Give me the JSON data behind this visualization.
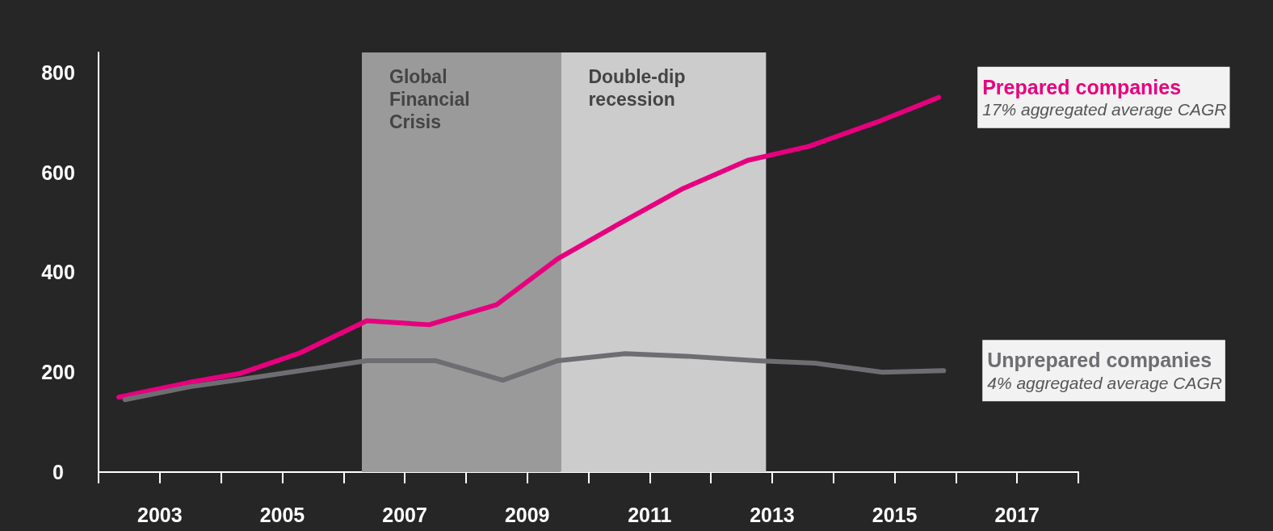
{
  "chart_data": {
    "type": "line",
    "xlim": [
      2002,
      2018
    ],
    "xticks": [
      {
        "value": 2002,
        "label": null
      },
      2003,
      {
        "value": 2004,
        "label": null
      },
      2005,
      {
        "value": 2006,
        "label": null
      },
      2007,
      {
        "value": 2008,
        "label": null
      },
      2009,
      {
        "value": 2010,
        "label": null
      },
      2011,
      {
        "value": 2012,
        "label": null
      },
      2013,
      {
        "value": 2014,
        "label": null
      },
      2015,
      {
        "value": 2016,
        "label": null
      },
      2017,
      {
        "value": 2018,
        "label": null
      }
    ],
    "ylim": [
      0,
      840
    ],
    "yticks": [
      0,
      200,
      400,
      600,
      800
    ],
    "series": [
      {
        "name": "Prepared companies",
        "color": "#e6007e",
        "x": [
          2002.33,
          2003.5,
          2004.3,
          2005.3,
          2006.38,
          2007.4,
          2008.5,
          2009.5,
          2010.5,
          2011.55,
          2012.6,
          2013.6,
          2014.7,
          2015.72
        ],
        "values": [
          150,
          180,
          197,
          239,
          303,
          295,
          335,
          427,
          497,
          568,
          624,
          652,
          700,
          750
        ]
      },
      {
        "name": "Unprepared companies",
        "color": "#6d6d72",
        "x": [
          2002.43,
          2003.5,
          2004.3,
          2005.3,
          2006.38,
          2007.5,
          2008.6,
          2009.5,
          2010.6,
          2011.6,
          2012.75,
          2013.7,
          2014.8,
          2015.8
        ],
        "values": [
          145,
          171,
          185,
          203,
          223,
          223,
          184,
          223,
          237,
          232,
          223,
          218,
          200,
          203
        ]
      }
    ],
    "annotations": [
      "17% aggregated average CAGR",
      "4% aggregated average CAGR"
    ],
    "bands": [
      {
        "axis": "x",
        "from": 2006.3,
        "to": 2009.55,
        "label": "Global Financial Crisis",
        "color": "#9a9a9a"
      },
      {
        "axis": "x",
        "from": 2009.55,
        "to": 2012.9,
        "label": "Double-dip recession",
        "color": "#cccccc"
      }
    ],
    "marker": "none",
    "line_style": "solid",
    "grid": false,
    "legend": false
  }
}
